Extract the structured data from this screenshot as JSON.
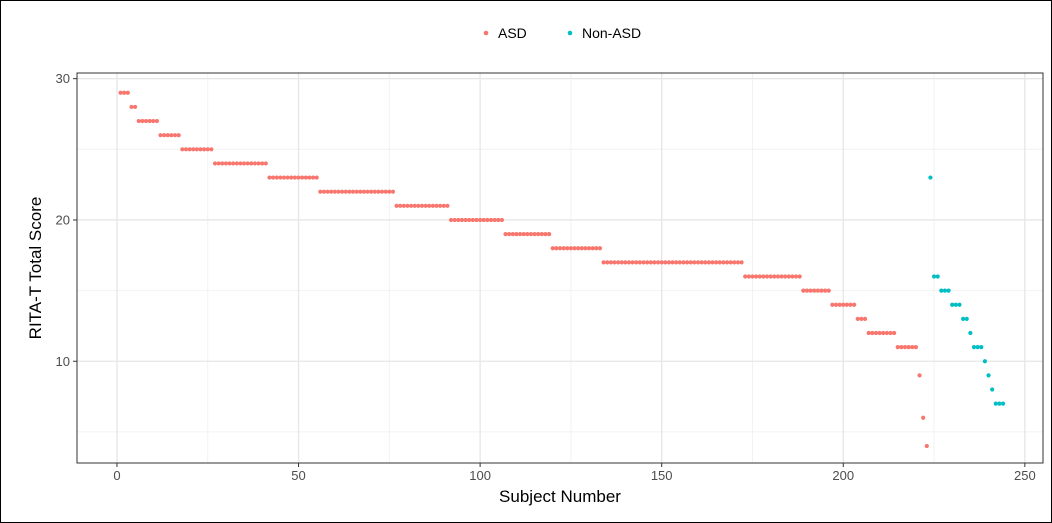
{
  "chart_data": {
    "type": "scatter",
    "title": "",
    "xlabel": "Subject Number",
    "ylabel": "RITA-T Total Score",
    "xlim": [
      -11,
      255
    ],
    "ylim": [
      2.8,
      30.4
    ],
    "x_ticks": [
      0,
      50,
      100,
      150,
      200,
      250
    ],
    "y_ticks": [
      10,
      20,
      30
    ],
    "grid": true,
    "legend_position": "top",
    "series": [
      {
        "name": "ASD",
        "color": "#F8766D",
        "groups": [
          {
            "y": 29,
            "x_from": 1,
            "x_to": 3
          },
          {
            "y": 28,
            "x_from": 4,
            "x_to": 5
          },
          {
            "y": 27,
            "x_from": 6,
            "x_to": 11
          },
          {
            "y": 26,
            "x_from": 12,
            "x_to": 17
          },
          {
            "y": 25,
            "x_from": 18,
            "x_to": 26
          },
          {
            "y": 24,
            "x_from": 27,
            "x_to": 41
          },
          {
            "y": 23,
            "x_from": 42,
            "x_to": 55
          },
          {
            "y": 22,
            "x_from": 56,
            "x_to": 76
          },
          {
            "y": 21,
            "x_from": 77,
            "x_to": 91
          },
          {
            "y": 20,
            "x_from": 92,
            "x_to": 106
          },
          {
            "y": 19,
            "x_from": 107,
            "x_to": 119
          },
          {
            "y": 18,
            "x_from": 120,
            "x_to": 133
          },
          {
            "y": 17,
            "x_from": 134,
            "x_to": 172
          },
          {
            "y": 16,
            "x_from": 173,
            "x_to": 188
          },
          {
            "y": 15,
            "x_from": 189,
            "x_to": 196
          },
          {
            "y": 14,
            "x_from": 197,
            "x_to": 203
          },
          {
            "y": 13,
            "x_from": 204,
            "x_to": 206
          },
          {
            "y": 12,
            "x_from": 207,
            "x_to": 214
          },
          {
            "y": 11,
            "x_from": 215,
            "x_to": 220
          },
          {
            "y": 9,
            "x_from": 221,
            "x_to": 221
          },
          {
            "y": 6,
            "x_from": 222,
            "x_to": 222
          },
          {
            "y": 4,
            "x_from": 223,
            "x_to": 223
          }
        ]
      },
      {
        "name": "Non-ASD",
        "color": "#00BFC4",
        "groups": [
          {
            "y": 23,
            "x_from": 224,
            "x_to": 224
          },
          {
            "y": 16,
            "x_from": 225,
            "x_to": 226
          },
          {
            "y": 15,
            "x_from": 227,
            "x_to": 229
          },
          {
            "y": 14,
            "x_from": 230,
            "x_to": 232
          },
          {
            "y": 13,
            "x_from": 233,
            "x_to": 234
          },
          {
            "y": 12,
            "x_from": 235,
            "x_to": 235
          },
          {
            "y": 11,
            "x_from": 236,
            "x_to": 238
          },
          {
            "y": 10,
            "x_from": 239,
            "x_to": 239
          },
          {
            "y": 9,
            "x_from": 240,
            "x_to": 240
          },
          {
            "y": 8,
            "x_from": 241,
            "x_to": 241
          },
          {
            "y": 7,
            "x_from": 242,
            "x_to": 244
          }
        ]
      }
    ]
  }
}
